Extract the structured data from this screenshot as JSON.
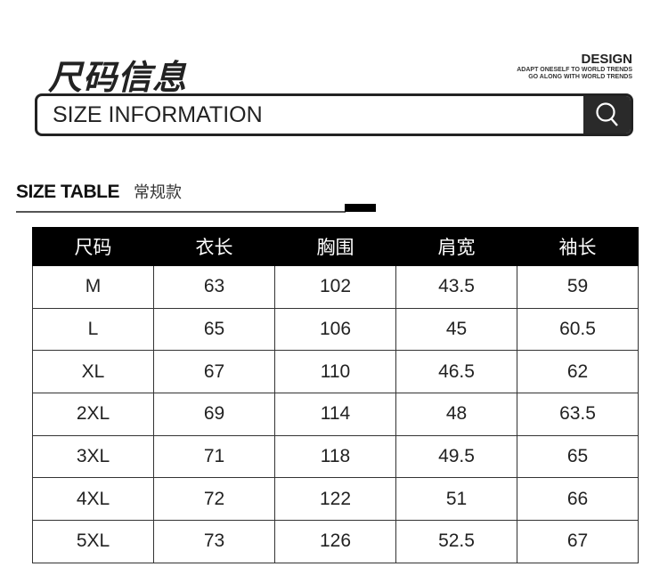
{
  "header": {
    "title_cn": "尺码信息",
    "design": "DESIGN",
    "tagline1": "ADAPT ONESELF TO WORLD TRENDS",
    "tagline2": "GO ALONG WITH WORLD TRENDS",
    "search_text": "SIZE INFORMATION",
    "search_icon": "search-icon"
  },
  "section": {
    "title_en": "SIZE TABLE",
    "title_cn": "常规款"
  },
  "table": {
    "columns": [
      "尺码",
      "衣长",
      "胸围",
      "肩宽",
      "袖长"
    ],
    "rows": [
      [
        "M",
        "63",
        "102",
        "43.5",
        "59"
      ],
      [
        "L",
        "65",
        "106",
        "45",
        "60.5"
      ],
      [
        "XL",
        "67",
        "110",
        "46.5",
        "62"
      ],
      [
        "2XL",
        "69",
        "114",
        "48",
        "63.5"
      ],
      [
        "3XL",
        "71",
        "118",
        "49.5",
        "65"
      ],
      [
        "4XL",
        "72",
        "122",
        "51",
        "66"
      ],
      [
        "5XL",
        "73",
        "126",
        "52.5",
        "67"
      ]
    ]
  }
}
